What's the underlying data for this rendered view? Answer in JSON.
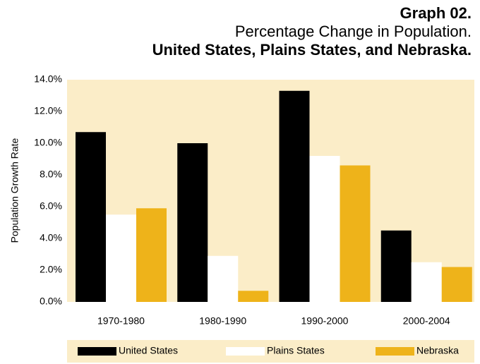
{
  "chart_data": {
    "type": "bar",
    "title": "Graph 02.",
    "subtitle": "Percentage Change in Population.",
    "subtitle2": "United States, Plains States, and Nebraska.",
    "y_label": "Population Growth Rate",
    "categories": [
      "1970-1980",
      "1980-1990",
      "1990-2000",
      "2000-2004"
    ],
    "series": [
      {
        "name": "United States",
        "color": "#000000",
        "values": [
          10.7,
          10.0,
          13.3,
          4.5
        ]
      },
      {
        "name": "Plains States",
        "color": "#ffffff",
        "values": [
          5.5,
          2.9,
          9.2,
          2.5
        ]
      },
      {
        "name": "Nebraska",
        "color": "#eeb31a",
        "values": [
          5.9,
          0.7,
          8.6,
          2.2
        ]
      }
    ],
    "ylim": [
      0,
      14
    ],
    "yticks": [
      {
        "value": 0,
        "label": "0.0%"
      },
      {
        "value": 2,
        "label": "2.0%"
      },
      {
        "value": 4,
        "label": "4.0%"
      },
      {
        "value": 6,
        "label": "6.0%"
      },
      {
        "value": 8,
        "label": "8.0%"
      },
      {
        "value": 10,
        "label": "10.0%"
      },
      {
        "value": 12,
        "label": "12.0%"
      },
      {
        "value": 14,
        "label": "14.0%"
      }
    ],
    "legend": "bottom"
  }
}
